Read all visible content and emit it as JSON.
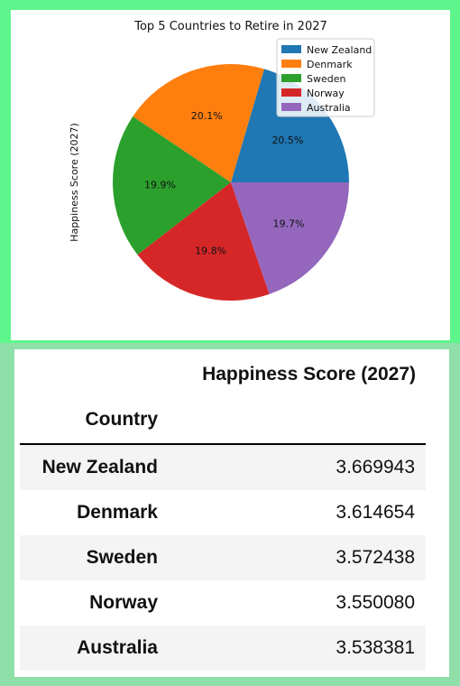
{
  "chart_data": {
    "type": "pie",
    "title": "Top 5 Countries to Retire in 2027",
    "ylabel": "Happiness Score (2027)",
    "categories": [
      "New Zealand",
      "Denmark",
      "Sweden",
      "Norway",
      "Australia"
    ],
    "values": [
      3.669943,
      3.614654,
      3.572438,
      3.55008,
      3.538381
    ],
    "percent_labels": [
      "20.5%",
      "20.1%",
      "19.9%",
      "19.8%",
      "19.7%"
    ],
    "colors": [
      "#1f77b4",
      "#ff7f0e",
      "#2ca02c",
      "#d62728",
      "#9467bd"
    ],
    "legend": "top-right",
    "start_angle_deg": 0,
    "direction": "counterclockwise"
  },
  "table": {
    "value_header": "Happiness Score (2027)",
    "index_header": "Country",
    "rows": [
      {
        "country": "New Zealand",
        "score": "3.669943"
      },
      {
        "country": "Denmark",
        "score": "3.614654"
      },
      {
        "country": "Sweden",
        "score": "3.572438"
      },
      {
        "country": "Norway",
        "score": "3.550080"
      },
      {
        "country": "Australia",
        "score": "3.538381"
      }
    ]
  }
}
